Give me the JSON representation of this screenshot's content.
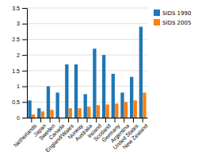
{
  "chart_data": {
    "type": "bar",
    "categories": [
      "Netherlands",
      "Japan",
      "Sweden",
      "Canada",
      "England/Wales",
      "Norway",
      "Australia",
      "Ireland",
      "Scotland",
      "Germany",
      "Argentina",
      "United States",
      "New Zealand"
    ],
    "series": [
      {
        "name": "SIDS 1990",
        "values": [
          0.55,
          0.3,
          1.0,
          0.8,
          1.7,
          1.7,
          0.75,
          2.2,
          2.0,
          1.4,
          0.8,
          1.3,
          2.9
        ]
      },
      {
        "name": "SIDS 2005",
        "values": [
          0.1,
          0.2,
          0.25,
          0.0,
          0.3,
          0.3,
          0.35,
          0.4,
          0.42,
          0.45,
          0.5,
          0.55,
          0.8
        ]
      }
    ],
    "ylim": [
      0,
      3.5
    ],
    "yticks": [
      0,
      0.5,
      1.0,
      1.5,
      2.0,
      2.5,
      3.0,
      3.5
    ],
    "grid": true,
    "legend": "right"
  }
}
